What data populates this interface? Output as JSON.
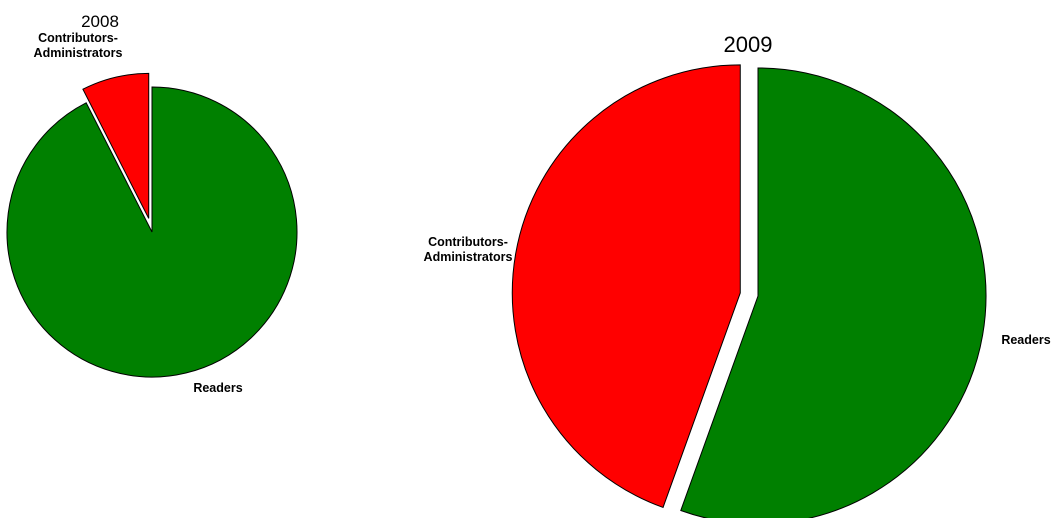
{
  "chart_data": [
    {
      "type": "pie",
      "title": "2008",
      "labels": [
        "Readers",
        "Contributors-\nAdministrators"
      ],
      "values": [
        92.5,
        7.5
      ],
      "colors": [
        "#008000",
        "#ff0000"
      ],
      "exploded": [
        false,
        true
      ],
      "legend": "none"
    },
    {
      "type": "pie",
      "title": "2009",
      "labels": [
        "Readers",
        "Contributors-\nAdministrators"
      ],
      "values": [
        55.5,
        44.5
      ],
      "colors": [
        "#008000",
        "#ff0000"
      ],
      "exploded": [
        false,
        true
      ],
      "legend": "none"
    }
  ]
}
